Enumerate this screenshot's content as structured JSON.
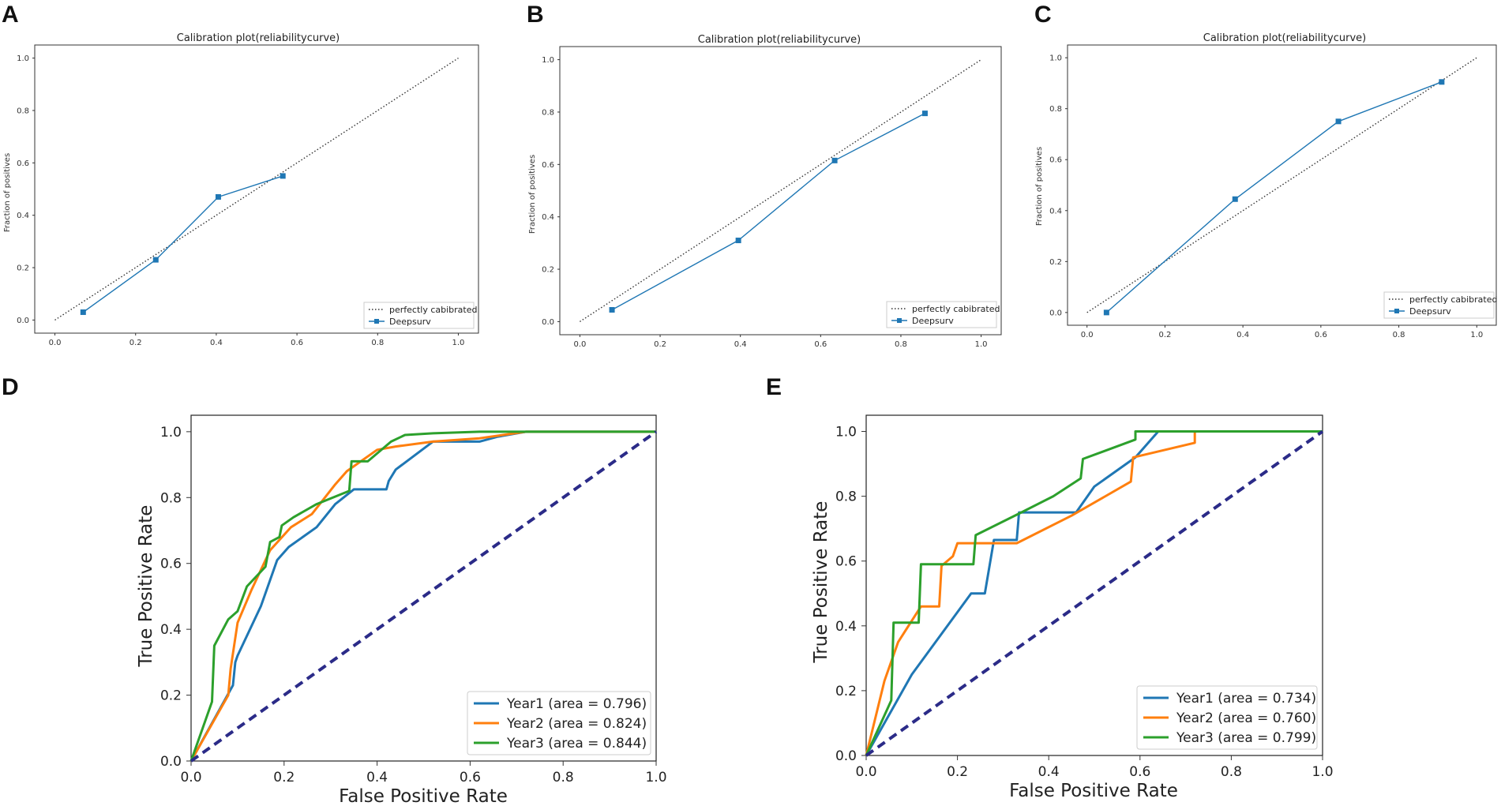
{
  "colors": {
    "deepsurv": "#1f77b4",
    "diagonal_dotted": "#333333",
    "year1": "#1f77b4",
    "year2": "#ff7f0e",
    "year3": "#2ca02c",
    "chance": "#2b2b88"
  },
  "chart_data": [
    {
      "panel": "A",
      "type": "line",
      "title": "Calibration plot(reliabilitycurve)",
      "xlabel": "",
      "ylabel": "Fraction of positives",
      "xlim": [
        -0.05,
        1.05
      ],
      "ylim": [
        -0.05,
        1.05
      ],
      "xticks": [
        "0.0",
        "0.2",
        "0.4",
        "0.6",
        "0.8",
        "1.0"
      ],
      "yticks": [
        "0.0",
        "0.2",
        "0.4",
        "0.6",
        "0.8",
        "1.0"
      ],
      "legend_position": "lower-right",
      "series": [
        {
          "name": "perfectly cabibrated",
          "style": "dotted",
          "x": [
            0,
            1
          ],
          "y": [
            0,
            1
          ]
        },
        {
          "name": "Deepsurv",
          "style": "line-square",
          "x": [
            0.07,
            0.25,
            0.405,
            0.565
          ],
          "y": [
            0.03,
            0.23,
            0.47,
            0.55
          ]
        }
      ]
    },
    {
      "panel": "B",
      "type": "line",
      "title": "Calibration plot(reliabilitycurve)",
      "xlabel": "",
      "ylabel": "Fraction of positives",
      "xlim": [
        -0.05,
        1.05
      ],
      "ylim": [
        -0.05,
        1.05
      ],
      "xticks": [
        "0.0",
        "0.2",
        "0.4",
        "0.6",
        "0.8",
        "1.0"
      ],
      "yticks": [
        "0.0",
        "0.2",
        "0.4",
        "0.6",
        "0.8",
        "1.0"
      ],
      "legend_position": "lower-right",
      "series": [
        {
          "name": "perfectly cabibrated",
          "style": "dotted",
          "x": [
            0,
            1
          ],
          "y": [
            0,
            1
          ]
        },
        {
          "name": "Deepsurv",
          "style": "line-square",
          "x": [
            0.08,
            0.395,
            0.635,
            0.86
          ],
          "y": [
            0.045,
            0.31,
            0.615,
            0.795
          ]
        }
      ]
    },
    {
      "panel": "C",
      "type": "line",
      "title": "Calibration plot(reliabilitycurve)",
      "xlabel": "",
      "ylabel": "Fraction of positives",
      "xlim": [
        -0.05,
        1.05
      ],
      "ylim": [
        -0.05,
        1.05
      ],
      "xticks": [
        "0.0",
        "0.2",
        "0.4",
        "0.6",
        "0.8",
        "1.0"
      ],
      "yticks": [
        "0.0",
        "0.2",
        "0.4",
        "0.6",
        "0.8",
        "1.0"
      ],
      "legend_position": "lower-right",
      "series": [
        {
          "name": "perfectly cabibrated",
          "style": "dotted",
          "x": [
            0,
            1
          ],
          "y": [
            0,
            1
          ]
        },
        {
          "name": "Deepsurv",
          "style": "line-square",
          "x": [
            0.05,
            0.38,
            0.645,
            0.91
          ],
          "y": [
            0.0,
            0.445,
            0.75,
            0.905
          ]
        }
      ]
    },
    {
      "panel": "D",
      "type": "line",
      "title": "",
      "xlabel": "False Positive Rate",
      "ylabel": "True Positive Rate",
      "xlim": [
        0,
        1
      ],
      "ylim": [
        0,
        1.05
      ],
      "xticks": [
        "0.0",
        "0.2",
        "0.4",
        "0.6",
        "0.8",
        "1.0"
      ],
      "yticks": [
        "0.0",
        "0.2",
        "0.4",
        "0.6",
        "0.8",
        "1.0"
      ],
      "legend_position": "lower-right",
      "series": [
        {
          "name": "Year1 (area = 0.796)",
          "color_key": "year1",
          "x": [
            0,
            0.09,
            0.095,
            0.1,
            0.15,
            0.185,
            0.21,
            0.27,
            0.31,
            0.35,
            0.42,
            0.425,
            0.44,
            0.52,
            0.62,
            0.66,
            0.72,
            0.75,
            1.0
          ],
          "y": [
            0,
            0.23,
            0.3,
            0.32,
            0.47,
            0.61,
            0.65,
            0.71,
            0.78,
            0.825,
            0.825,
            0.85,
            0.885,
            0.97,
            0.97,
            0.985,
            1.0,
            1.0,
            1.0
          ]
        },
        {
          "name": "Year2 (area = 0.824)",
          "color_key": "year2",
          "x": [
            0,
            0.08,
            0.085,
            0.1,
            0.13,
            0.17,
            0.215,
            0.26,
            0.31,
            0.335,
            0.4,
            0.44,
            0.52,
            0.62,
            0.72,
            0.8,
            1.0
          ],
          "y": [
            0,
            0.2,
            0.28,
            0.42,
            0.52,
            0.64,
            0.71,
            0.75,
            0.84,
            0.88,
            0.945,
            0.955,
            0.97,
            0.98,
            1.0,
            1.0,
            1.0
          ]
        },
        {
          "name": "Year3 (area = 0.844)",
          "color_key": "year3",
          "x": [
            0,
            0.045,
            0.05,
            0.08,
            0.1,
            0.12,
            0.16,
            0.17,
            0.19,
            0.195,
            0.22,
            0.27,
            0.34,
            0.345,
            0.38,
            0.43,
            0.46,
            0.52,
            0.62,
            0.7,
            1.0
          ],
          "y": [
            0,
            0.18,
            0.35,
            0.43,
            0.455,
            0.53,
            0.59,
            0.665,
            0.68,
            0.715,
            0.74,
            0.78,
            0.82,
            0.91,
            0.91,
            0.97,
            0.99,
            0.995,
            1.0,
            1.0,
            1.0
          ]
        },
        {
          "name": "chance",
          "color_key": "chance",
          "style": "dashed",
          "x": [
            0,
            1
          ],
          "y": [
            0,
            1
          ]
        }
      ],
      "legend": [
        "Year1 (area = 0.796)",
        "Year2 (area = 0.824)",
        "Year3 (area = 0.844)"
      ]
    },
    {
      "panel": "E",
      "type": "line",
      "title": "",
      "xlabel": "False Positive Rate",
      "ylabel": "True Positive Rate",
      "xlim": [
        0,
        1
      ],
      "ylim": [
        0,
        1.05
      ],
      "xticks": [
        "0.0",
        "0.2",
        "0.4",
        "0.6",
        "0.8",
        "1.0"
      ],
      "yticks": [
        "0.0",
        "0.2",
        "0.4",
        "0.6",
        "0.8",
        "1.0"
      ],
      "legend_position": "lower-right",
      "series": [
        {
          "name": "Year1 (area = 0.734)",
          "color_key": "year1",
          "x": [
            0,
            0.1,
            0.23,
            0.26,
            0.28,
            0.33,
            0.335,
            0.46,
            0.5,
            0.59,
            0.64,
            1.0
          ],
          "y": [
            0,
            0.25,
            0.5,
            0.5,
            0.665,
            0.665,
            0.75,
            0.75,
            0.83,
            0.92,
            1.0,
            1.0
          ]
        },
        {
          "name": "Year2 (area = 0.760)",
          "color_key": "year2",
          "x": [
            0,
            0.04,
            0.07,
            0.12,
            0.16,
            0.165,
            0.19,
            0.2,
            0.33,
            0.45,
            0.58,
            0.585,
            0.72,
            0.72,
            1.0
          ],
          "y": [
            0,
            0.23,
            0.35,
            0.46,
            0.46,
            0.585,
            0.615,
            0.655,
            0.655,
            0.74,
            0.845,
            0.92,
            0.965,
            1.0,
            1.0
          ]
        },
        {
          "name": "Year3 (area = 0.799)",
          "color_key": "year3",
          "x": [
            0,
            0.055,
            0.06,
            0.115,
            0.12,
            0.235,
            0.24,
            0.34,
            0.41,
            0.47,
            0.475,
            0.59,
            0.59,
            1.0
          ],
          "y": [
            0,
            0.17,
            0.41,
            0.41,
            0.59,
            0.59,
            0.68,
            0.75,
            0.8,
            0.855,
            0.915,
            0.975,
            1.0,
            1.0
          ]
        },
        {
          "name": "chance",
          "color_key": "chance",
          "style": "dashed",
          "x": [
            0,
            1
          ],
          "y": [
            0,
            1
          ]
        }
      ],
      "legend": [
        "Year1 (area = 0.734)",
        "Year2 (area = 0.760)",
        "Year3 (area = 0.799)"
      ]
    }
  ]
}
